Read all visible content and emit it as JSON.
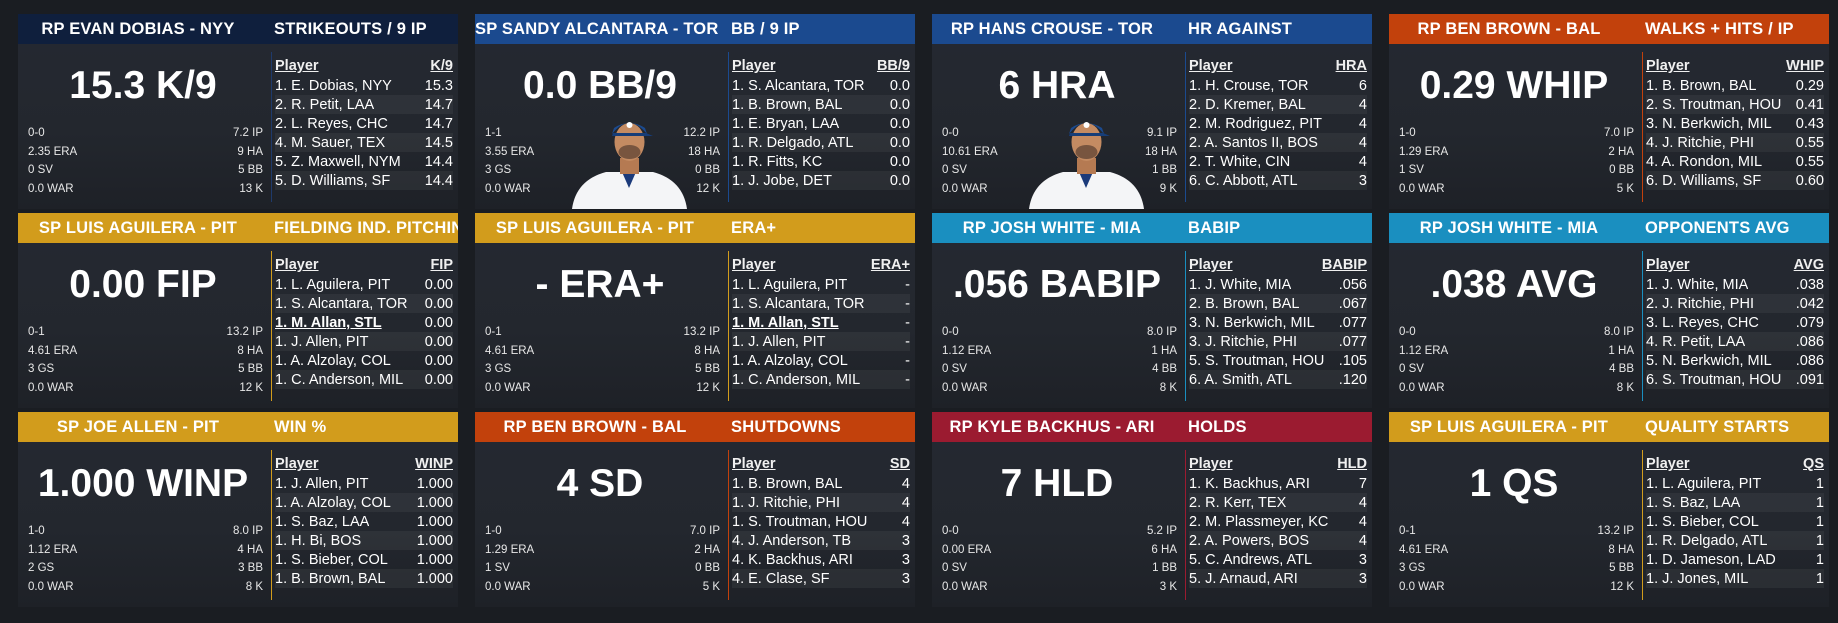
{
  "cards": [
    {
      "header": {
        "name": "RP EVAN DOBIAS - NYY",
        "category": "STRIKEOUTS / 9 IP",
        "color": "#0f1f3d"
      },
      "big": "15.3 K/9",
      "stats": [
        [
          "0-0",
          "7.2 IP"
        ],
        [
          "2.35 ERA",
          "9 HA"
        ],
        [
          "0 SV",
          "5 BB"
        ],
        [
          "0.0 WAR",
          "13 K"
        ]
      ],
      "leader": {
        "col_player": "Player",
        "col_stat": "K/9",
        "rows": [
          [
            "1. E. Dobias, NYY",
            "15.3"
          ],
          [
            "2. R. Petit, LAA",
            "14.7"
          ],
          [
            "2. L. Reyes, CHC",
            "14.7"
          ],
          [
            "4. M. Sauer, TEX",
            "14.5"
          ],
          [
            "5. Z. Maxwell, NYM",
            "14.4"
          ],
          [
            "5. D. Williams, SF",
            "14.4"
          ]
        ]
      },
      "line_color": "#1f3a6b",
      "portrait": false
    },
    {
      "header": {
        "name": "SP SANDY ALCANTARA - TOR",
        "category": "BB / 9 IP",
        "color": "#1b4a8f"
      },
      "big": "0.0 BB/9",
      "stats": [
        [
          "1-1",
          "12.2 IP"
        ],
        [
          "3.55 ERA",
          "18 HA"
        ],
        [
          "3 GS",
          "0 BB"
        ],
        [
          "0.0 WAR",
          "12 K"
        ]
      ],
      "leader": {
        "col_player": "Player",
        "col_stat": "BB/9",
        "rows": [
          [
            "1. S. Alcantara, TOR",
            "0.0"
          ],
          [
            "1. B. Brown, BAL",
            "0.0"
          ],
          [
            "1. E. Bryan, LAA",
            "0.0"
          ],
          [
            "1. R. Delgado, ATL",
            "0.0"
          ],
          [
            "1. R. Fitts, KC",
            "0.0"
          ],
          [
            "1. J. Jobe, DET",
            "0.0"
          ]
        ]
      },
      "line_color": "#1b4a8f",
      "portrait": true
    },
    {
      "header": {
        "name": "RP HANS CROUSE - TOR",
        "category": "HR AGAINST",
        "color": "#1b4a8f"
      },
      "big": "6 HRA",
      "stats": [
        [
          "0-0",
          "9.1 IP"
        ],
        [
          "10.61 ERA",
          "18 HA"
        ],
        [
          "0 SV",
          "1 BB"
        ],
        [
          "0.0 WAR",
          "9 K"
        ]
      ],
      "leader": {
        "col_player": "Player",
        "col_stat": "HRA",
        "rows": [
          [
            "1. H. Crouse, TOR",
            "6"
          ],
          [
            "2. D. Kremer, BAL",
            "4"
          ],
          [
            "2. M. Rodriguez, PIT",
            "4"
          ],
          [
            "2. A. Santos II, BOS",
            "4"
          ],
          [
            "2. T. White, CIN",
            "4"
          ],
          [
            "6. C. Abbott, ATL",
            "3"
          ]
        ]
      },
      "line_color": "#1b4a8f",
      "portrait": true
    },
    {
      "header": {
        "name": "RP BEN BROWN - BAL",
        "category": "WALKS + HITS / IP",
        "color": "#c2410c"
      },
      "big": "0.29 WHIP",
      "stats": [
        [
          "1-0",
          "7.0 IP"
        ],
        [
          "1.29 ERA",
          "2 HA"
        ],
        [
          "1 SV",
          "0 BB"
        ],
        [
          "0.0 WAR",
          "5 K"
        ]
      ],
      "leader": {
        "col_player": "Player",
        "col_stat": "WHIP",
        "rows": [
          [
            "1. B. Brown, BAL",
            "0.29"
          ],
          [
            "2. S. Troutman, HOU",
            "0.41"
          ],
          [
            "3. N. Berkwich, MIL",
            "0.43"
          ],
          [
            "4. J. Ritchie, PHI",
            "0.55"
          ],
          [
            "4. A. Rondon, MIL",
            "0.55"
          ],
          [
            "6. D. Williams, SF",
            "0.60"
          ]
        ]
      },
      "line_color": "#c2410c",
      "portrait": false
    },
    {
      "header": {
        "name": "SP LUIS AGUILERA - PIT",
        "category": "FIELDING IND. PITCHING",
        "color": "#d29c1c"
      },
      "big": "0.00 FIP",
      "stats": [
        [
          "0-1",
          "13.2 IP"
        ],
        [
          "4.61 ERA",
          "8 HA"
        ],
        [
          "3 GS",
          "5 BB"
        ],
        [
          "0.0 WAR",
          "12 K"
        ]
      ],
      "leader": {
        "col_player": "Player",
        "col_stat": "FIP",
        "rows": [
          [
            "1. L. Aguilera, PIT",
            "0.00"
          ],
          [
            "1. S. Alcantara, TOR",
            "0.00"
          ],
          [
            "1. M. Allan, STL",
            "0.00"
          ],
          [
            "1. J. Allen, PIT",
            "0.00"
          ],
          [
            "1. A. Alzolay, COL",
            "0.00"
          ],
          [
            "1. C. Anderson, MIL",
            "0.00"
          ]
        ]
      },
      "line_color": "#d29c1c",
      "portrait": false,
      "highlight_row": 2
    },
    {
      "header": {
        "name": "SP LUIS AGUILERA - PIT",
        "category": "ERA+",
        "color": "#d29c1c"
      },
      "big": "- ERA+",
      "stats": [
        [
          "0-1",
          "13.2 IP"
        ],
        [
          "4.61 ERA",
          "8 HA"
        ],
        [
          "3 GS",
          "5 BB"
        ],
        [
          "0.0 WAR",
          "12 K"
        ]
      ],
      "leader": {
        "col_player": "Player",
        "col_stat": "ERA+",
        "rows": [
          [
            "1. L. Aguilera, PIT",
            "-"
          ],
          [
            "1. S. Alcantara, TOR",
            "-"
          ],
          [
            "1. M. Allan, STL",
            "-"
          ],
          [
            "1. J. Allen, PIT",
            "-"
          ],
          [
            "1. A. Alzolay, COL",
            "-"
          ],
          [
            "1. C. Anderson, MIL",
            "-"
          ]
        ]
      },
      "line_color": "#d29c1c",
      "portrait": false,
      "highlight_row": 2
    },
    {
      "header": {
        "name": "RP JOSH WHITE - MIA",
        "category": "BABIP",
        "color": "#1a8fc0"
      },
      "big": ".056 BABIP",
      "stats": [
        [
          "0-0",
          "8.0 IP"
        ],
        [
          "1.12 ERA",
          "1 HA"
        ],
        [
          "0 SV",
          "4 BB"
        ],
        [
          "0.0 WAR",
          "8 K"
        ]
      ],
      "leader": {
        "col_player": "Player",
        "col_stat": "BABIP",
        "rows": [
          [
            "1. J. White, MIA",
            ".056"
          ],
          [
            "2. B. Brown, BAL",
            ".067"
          ],
          [
            "3. N. Berkwich, MIL",
            ".077"
          ],
          [
            "3. J. Ritchie, PHI",
            ".077"
          ],
          [
            "5. S. Troutman, HOU",
            ".105"
          ],
          [
            "6. A. Smith, ATL",
            ".120"
          ]
        ]
      },
      "line_color": "#1a8fc0",
      "portrait": false
    },
    {
      "header": {
        "name": "RP JOSH WHITE - MIA",
        "category": "OPPONENTS AVG",
        "color": "#1a8fc0"
      },
      "big": ".038 AVG",
      "stats": [
        [
          "0-0",
          "8.0 IP"
        ],
        [
          "1.12 ERA",
          "1 HA"
        ],
        [
          "0 SV",
          "4 BB"
        ],
        [
          "0.0 WAR",
          "8 K"
        ]
      ],
      "leader": {
        "col_player": "Player",
        "col_stat": "AVG",
        "rows": [
          [
            "1. J. White, MIA",
            ".038"
          ],
          [
            "2. J. Ritchie, PHI",
            ".042"
          ],
          [
            "3. L. Reyes, CHC",
            ".079"
          ],
          [
            "4. R. Petit, LAA",
            ".086"
          ],
          [
            "5. N. Berkwich, MIL",
            ".086"
          ],
          [
            "6. S. Troutman, HOU",
            ".091"
          ]
        ]
      },
      "line_color": "#1a8fc0",
      "portrait": false
    },
    {
      "header": {
        "name": "SP JOE ALLEN - PIT",
        "category": "WIN %",
        "color": "#d29c1c"
      },
      "big": "1.000 WINP",
      "stats": [
        [
          "1-0",
          "8.0 IP"
        ],
        [
          "1.12 ERA",
          "4 HA"
        ],
        [
          "2 GS",
          "3 BB"
        ],
        [
          "0.0 WAR",
          "8 K"
        ]
      ],
      "leader": {
        "col_player": "Player",
        "col_stat": "WINP",
        "rows": [
          [
            "1. J. Allen, PIT",
            "1.000"
          ],
          [
            "1. A. Alzolay, COL",
            "1.000"
          ],
          [
            "1. S. Baz, LAA",
            "1.000"
          ],
          [
            "1. H. Bi, BOS",
            "1.000"
          ],
          [
            "1. S. Bieber, COL",
            "1.000"
          ],
          [
            "1. B. Brown, BAL",
            "1.000"
          ]
        ]
      },
      "line_color": "#d29c1c",
      "portrait": false
    },
    {
      "header": {
        "name": "RP BEN BROWN - BAL",
        "category": "SHUTDOWNS",
        "color": "#c2410c"
      },
      "big": "4 SD",
      "stats": [
        [
          "1-0",
          "7.0 IP"
        ],
        [
          "1.29 ERA",
          "2 HA"
        ],
        [
          "1 SV",
          "0 BB"
        ],
        [
          "0.0 WAR",
          "5 K"
        ]
      ],
      "leader": {
        "col_player": "Player",
        "col_stat": "SD",
        "rows": [
          [
            "1. B. Brown, BAL",
            "4"
          ],
          [
            "1. J. Ritchie, PHI",
            "4"
          ],
          [
            "1. S. Troutman, HOU",
            "4"
          ],
          [
            "4. J. Anderson, TB",
            "3"
          ],
          [
            "4. K. Backhus, ARI",
            "3"
          ],
          [
            "4. E. Clase, SF",
            "3"
          ]
        ]
      },
      "line_color": "#c2410c",
      "portrait": false
    },
    {
      "header": {
        "name": "RP KYLE BACKHUS - ARI",
        "category": "HOLDS",
        "color": "#9b1b30"
      },
      "big": "7 HLD",
      "stats": [
        [
          "0-0",
          "5.2 IP"
        ],
        [
          "0.00 ERA",
          "6 HA"
        ],
        [
          "0 SV",
          "1 BB"
        ],
        [
          "0.0 WAR",
          "3 K"
        ]
      ],
      "leader": {
        "col_player": "Player",
        "col_stat": "HLD",
        "rows": [
          [
            "1. K. Backhus, ARI",
            "7"
          ],
          [
            "2. R. Kerr, TEX",
            "4"
          ],
          [
            "2. M. Plassmeyer, KC",
            "4"
          ],
          [
            "2. A. Powers, BOS",
            "4"
          ],
          [
            "5. C. Andrews, ATL",
            "3"
          ],
          [
            "5. J. Arnaud, ARI",
            "3"
          ]
        ]
      },
      "line_color": "#9b1b30",
      "portrait": false
    },
    {
      "header": {
        "name": "SP LUIS AGUILERA - PIT",
        "category": "QUALITY STARTS",
        "color": "#d29c1c"
      },
      "big": "1 QS",
      "stats": [
        [
          "0-1",
          "13.2 IP"
        ],
        [
          "4.61 ERA",
          "8 HA"
        ],
        [
          "3 GS",
          "5 BB"
        ],
        [
          "0.0 WAR",
          "12 K"
        ]
      ],
      "leader": {
        "col_player": "Player",
        "col_stat": "QS",
        "rows": [
          [
            "1. L. Aguilera, PIT",
            "1"
          ],
          [
            "1. S. Baz, LAA",
            "1"
          ],
          [
            "1. S. Bieber, COL",
            "1"
          ],
          [
            "1. R. Delgado, ATL",
            "1"
          ],
          [
            "1. D. Jameson, LAD",
            "1"
          ],
          [
            "1. J. Jones, MIL",
            "1"
          ]
        ]
      },
      "line_color": "#d29c1c",
      "portrait": false
    }
  ]
}
